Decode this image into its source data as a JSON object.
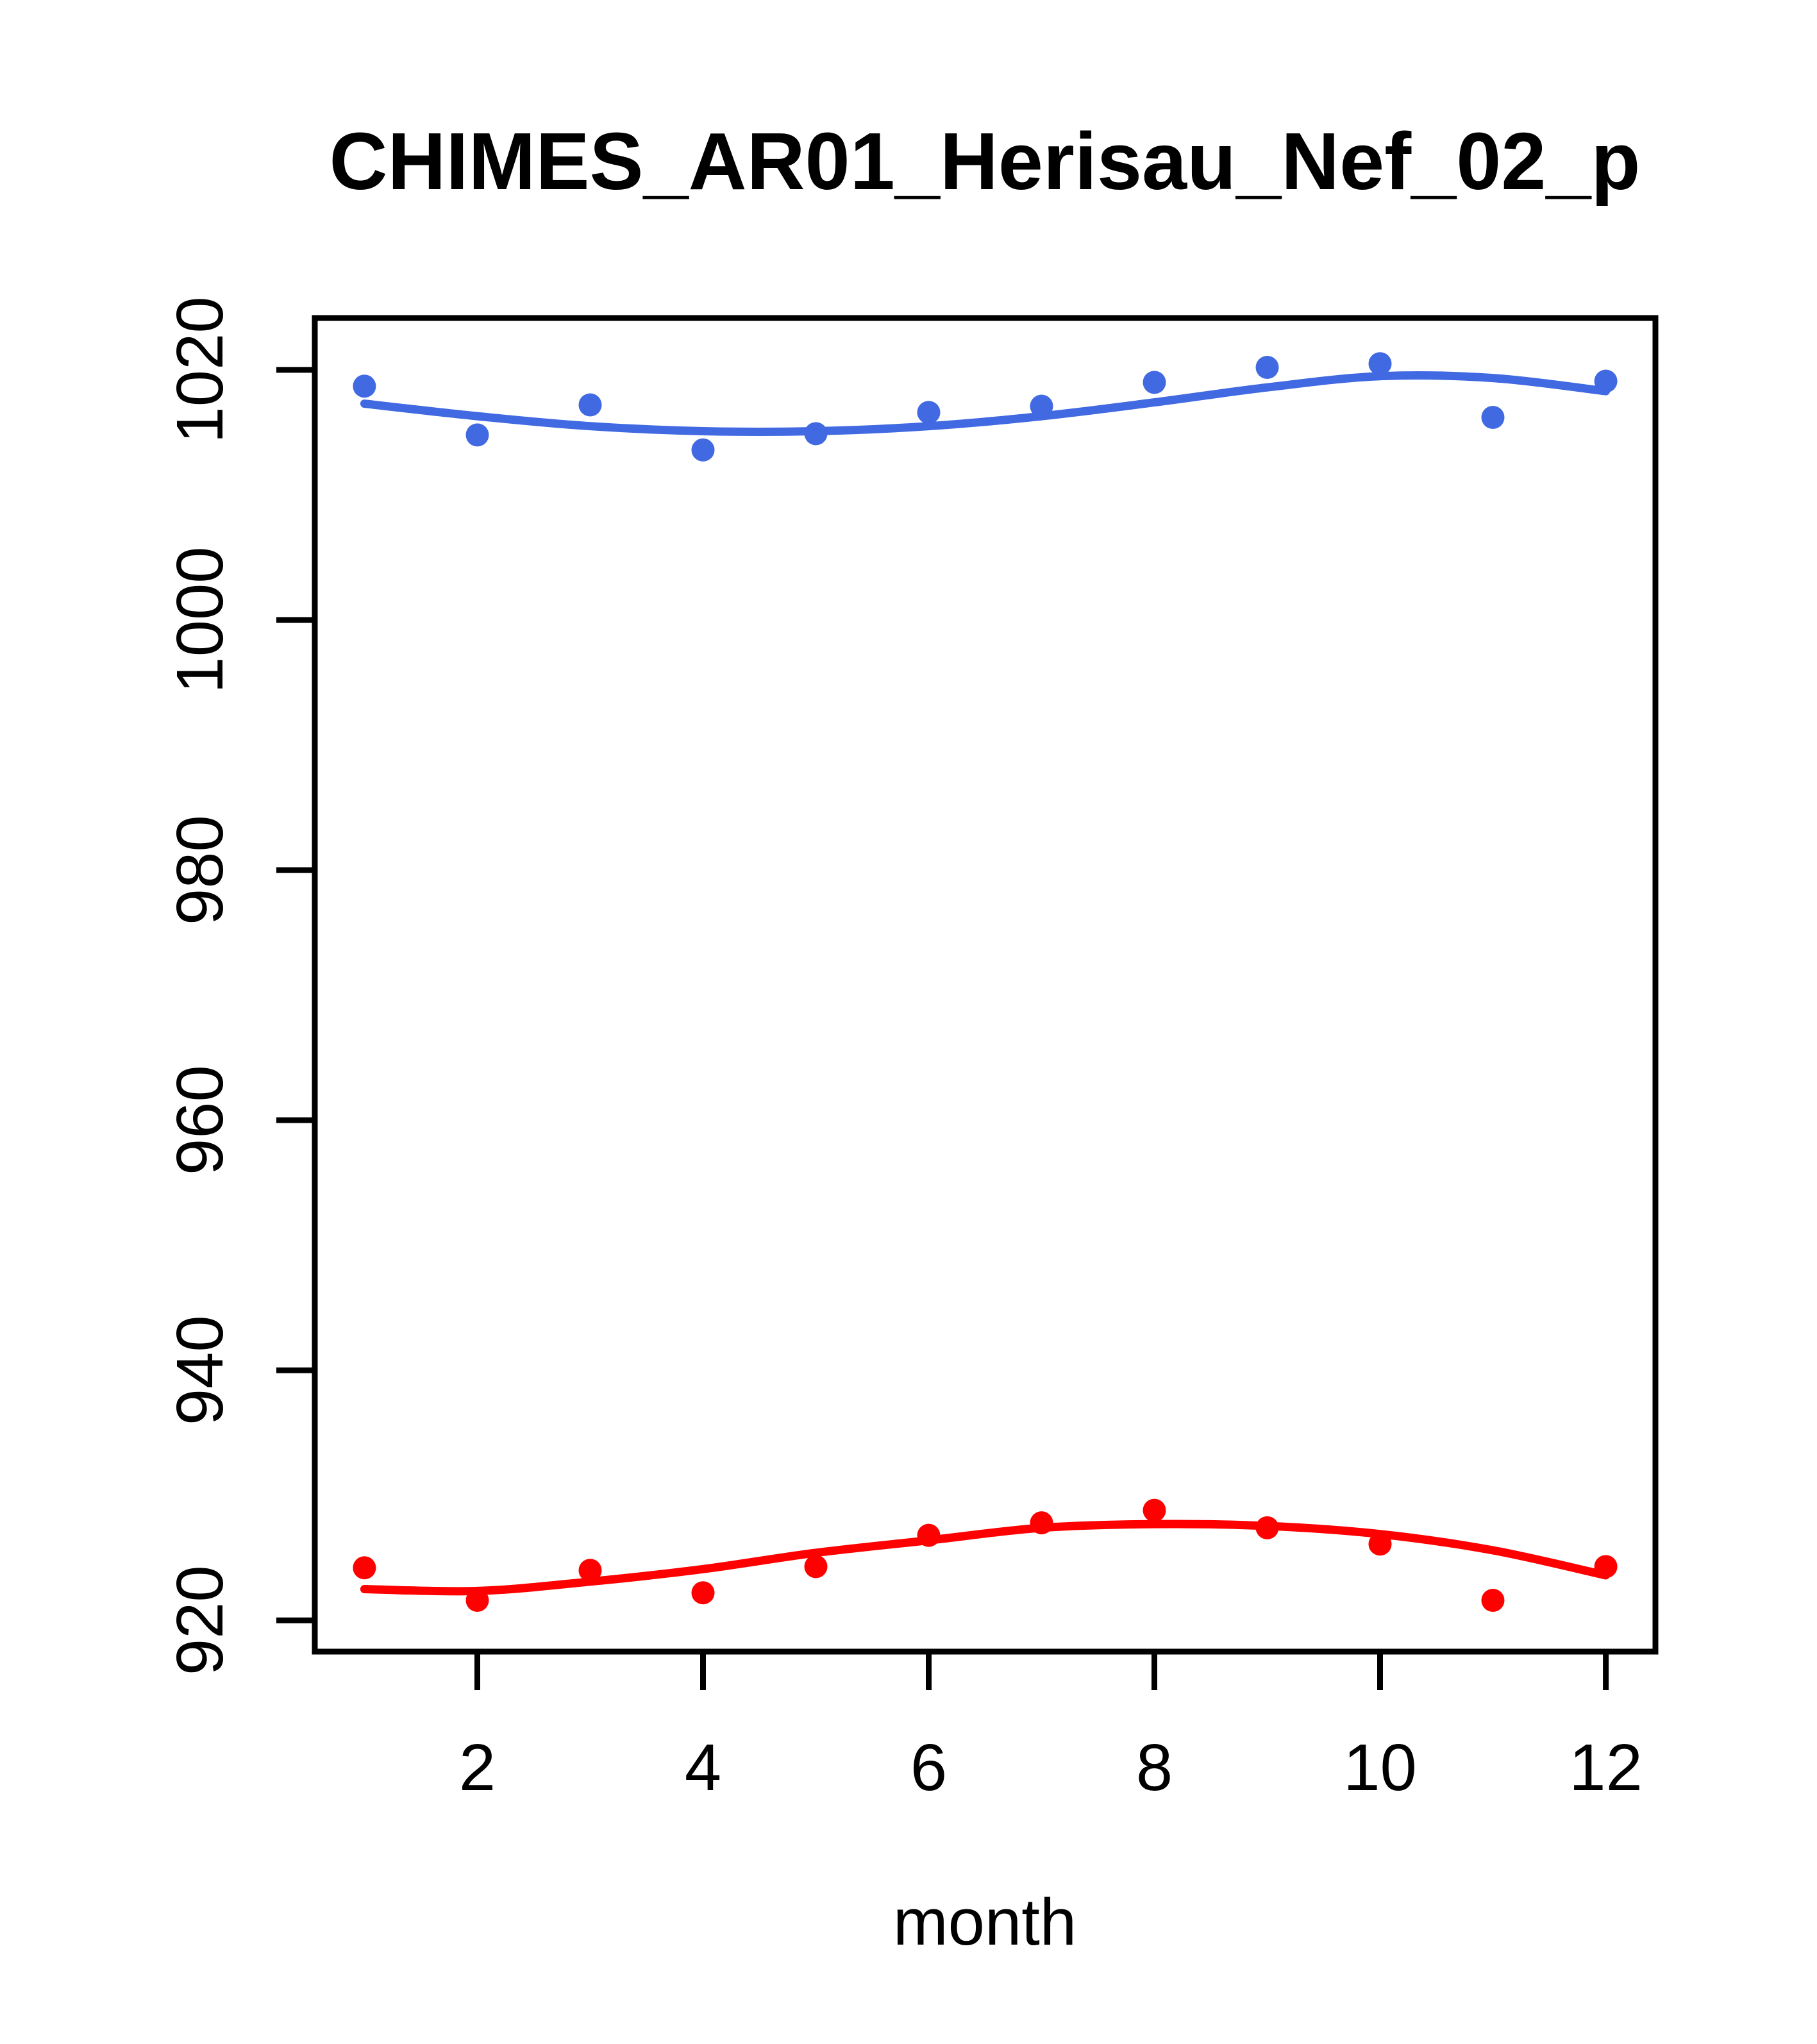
{
  "chart_data": {
    "type": "scatter",
    "title": "CHIMES_AR01_Herisau_Nef_02_p",
    "xlabel": "month",
    "ylabel": "",
    "grid": false,
    "legend": "none",
    "background": "#ffffff",
    "axis_color": "#000000",
    "xlim": [
      0.56,
      12.44
    ],
    "ylim": [
      917.5,
      1024.15
    ],
    "x_ticks": [
      2,
      4,
      6,
      8,
      10,
      12
    ],
    "y_ticks": [
      920,
      940,
      960,
      980,
      1000,
      1020
    ],
    "months": [
      1,
      2,
      3,
      4,
      5,
      6,
      7,
      8,
      9,
      10,
      11,
      12
    ],
    "series": [
      {
        "name": "series-blue",
        "color": "#4169E1",
        "marker": "filled-circle",
        "values": [
          1018.7,
          1014.8,
          1017.2,
          1013.6,
          1014.9,
          1016.6,
          1017.1,
          1019.0,
          1020.2,
          1020.5,
          1016.2,
          1019.1
        ],
        "smooth": [
          1017.3,
          1016.3,
          1015.5,
          1015.1,
          1015.1,
          1015.5,
          1016.3,
          1017.4,
          1018.6,
          1019.5,
          1019.35,
          1018.3
        ]
      },
      {
        "name": "series-red",
        "color": "#FF0000",
        "marker": "filled-circle",
        "values": [
          924.2,
          921.6,
          924.0,
          922.2,
          924.3,
          926.8,
          927.8,
          928.8,
          927.4,
          926.1,
          921.6,
          924.3
        ],
        "smooth": [
          922.5,
          922.35,
          923.1,
          924.1,
          925.4,
          926.4,
          927.4,
          927.7,
          927.55,
          926.9,
          925.6,
          923.6
        ]
      }
    ]
  }
}
